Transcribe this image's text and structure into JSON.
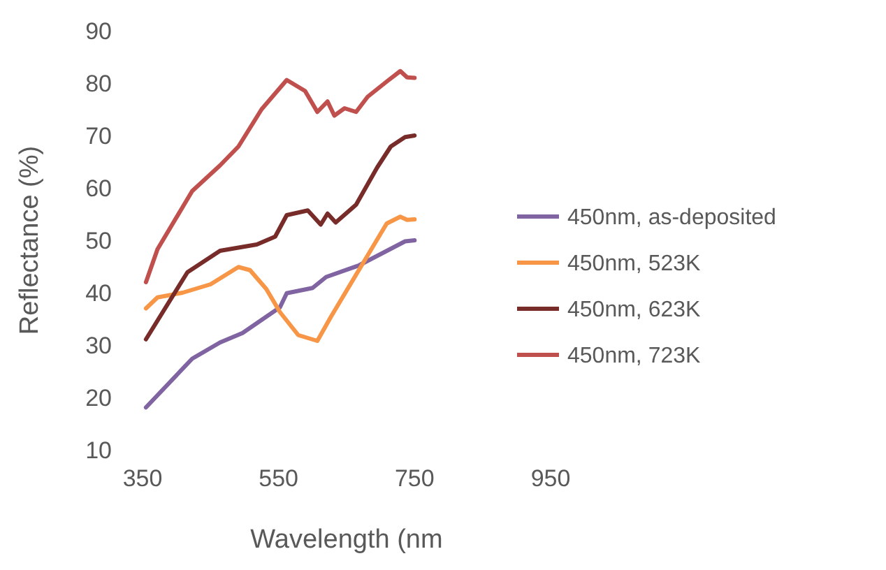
{
  "chart_data": {
    "type": "line",
    "xlabel": "Wavelength (nm",
    "ylabel": "Reflectance (%)",
    "xlim": [
      350,
      950
    ],
    "xticks": [
      350,
      550,
      750,
      950
    ],
    "ylim": [
      10,
      90
    ],
    "yticks": [
      10,
      20,
      30,
      40,
      50,
      60,
      70,
      80,
      90
    ],
    "grid": false,
    "legend": "right",
    "marker": "none",
    "line_style": "solid",
    "series": [
      {
        "name": "450nm, as-deposited",
        "color": "#8064a2",
        "x": [
          355,
          423,
          464,
          497,
          552,
          562,
          600,
          620,
          668,
          736,
          750
        ],
        "values": [
          18.1,
          27.4,
          30.5,
          32.3,
          37.2,
          39.9,
          40.9,
          43,
          45.2,
          49.8,
          50
        ]
      },
      {
        "name": "450nm, 523K",
        "color": "#f79646",
        "x": [
          355,
          372,
          409,
          450,
          491,
          508,
          532,
          552,
          579,
          607,
          627,
          668,
          709,
          729,
          739,
          750
        ],
        "values": [
          37,
          39.1,
          40,
          41.6,
          44.9,
          44.3,
          40.7,
          36.3,
          31.9,
          30.8,
          35.4,
          44.3,
          53.2,
          54.5,
          53.9,
          54
        ]
      },
      {
        "name": "450nm, 623K",
        "color": "#772c2a",
        "x": [
          355,
          416,
          464,
          518,
          545,
          562,
          593,
          612,
          622,
          634,
          664,
          695,
          715,
          736,
          750
        ],
        "values": [
          31.1,
          43.9,
          48,
          49.2,
          50.7,
          54.8,
          55.7,
          53,
          55.1,
          53.4,
          56.8,
          63.9,
          67.9,
          69.7,
          70
        ]
      },
      {
        "name": "450nm, 723K",
        "color": "#c0504d",
        "x": [
          355,
          372,
          423,
          464,
          491,
          525,
          562,
          589,
          607,
          622,
          632,
          647,
          664,
          681,
          709,
          729,
          739,
          750
        ],
        "values": [
          42,
          48.3,
          59.4,
          64.3,
          67.9,
          75,
          80.6,
          78.5,
          74.5,
          76.5,
          73.8,
          75.2,
          74.5,
          77.4,
          80.3,
          82.3,
          81.1,
          81
        ]
      }
    ]
  }
}
